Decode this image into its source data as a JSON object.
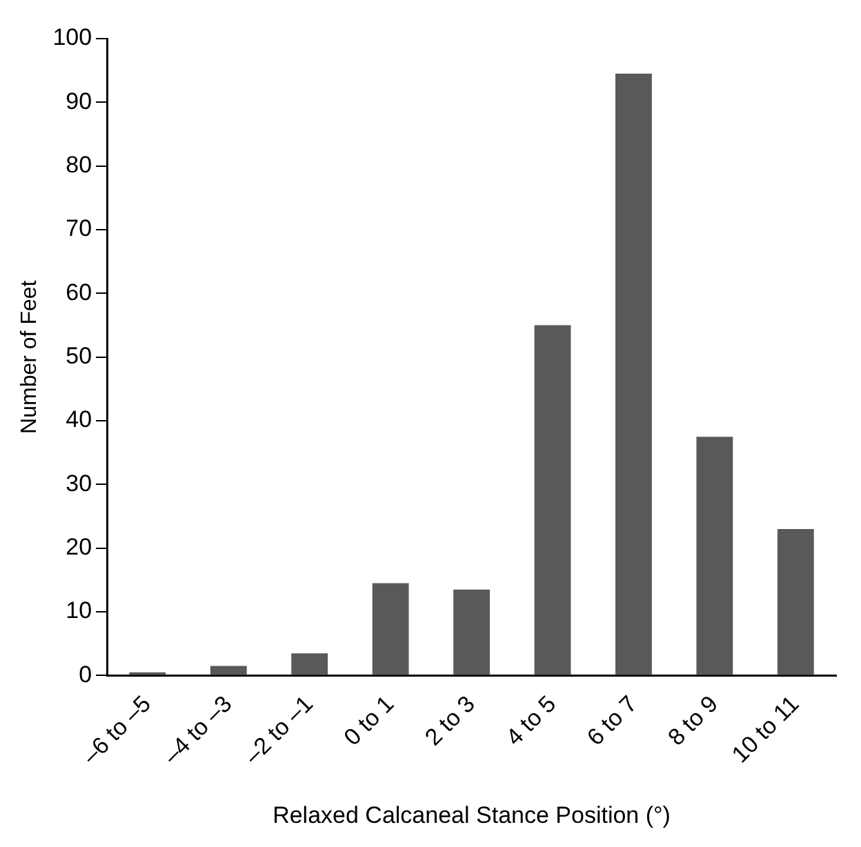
{
  "chart_data": {
    "type": "bar",
    "xlabel": "Relaxed Calcaneal Stance Position (°)",
    "ylabel": "Number of Feet",
    "categories": [
      "–6 to –5",
      "–4 to –3",
      "–2 to –1",
      "0 to 1",
      "2 to 3",
      "4 to 5",
      "6 to 7",
      "8 to 9",
      "10 to 11"
    ],
    "values": [
      0.5,
      1.5,
      3.5,
      14.5,
      13.5,
      55,
      94.5,
      37.5,
      23
    ],
    "color": "#595959",
    "ylim": [
      0,
      100
    ],
    "yticks": [
      0,
      10,
      20,
      30,
      40,
      50,
      60,
      70,
      80,
      90,
      100
    ],
    "grid": false,
    "legend": false
  }
}
